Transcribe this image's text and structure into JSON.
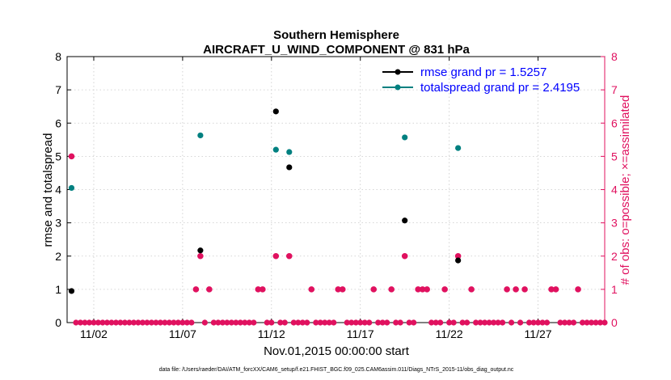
{
  "colors": {
    "rmse": "#000000",
    "spread": "#008080",
    "obs": "#e0115f",
    "legend_text": "#0000ff",
    "axis": "#000000"
  },
  "chart_data": {
    "type": "scatter",
    "title_line1": "Southern Hemisphere",
    "title_line2": "AIRCRAFT_U_WIND_COMPONENT @ 831 hPa",
    "xlabel": "Nov.01,2015 00:00:00 start",
    "ylabel_left": "rmse and totalspread",
    "ylabel_right": "# of obs: o=possible; ×=assimilated",
    "footnote": "data file: /Users/raeder/DAI/ATM_forcXX/CAM6_setup/f.e21.FHIST_BGC.f09_025.CAM6assim.011/Diags_NTrS_2015-11/obs_diag_output.nc",
    "xlim": [
      0.5,
      30.75
    ],
    "ylim_left": [
      0,
      8
    ],
    "ylim_right": [
      0,
      8
    ],
    "x_ticks": [
      {
        "x": 2,
        "label": "11/02"
      },
      {
        "x": 7,
        "label": "11/07"
      },
      {
        "x": 12,
        "label": "11/12"
      },
      {
        "x": 17,
        "label": "11/17"
      },
      {
        "x": 22,
        "label": "11/22"
      },
      {
        "x": 27,
        "label": "11/27"
      }
    ],
    "y_ticks_left": [
      "0",
      "1",
      "2",
      "3",
      "4",
      "5",
      "6",
      "7",
      "8"
    ],
    "y_ticks_right": [
      "0",
      "1",
      "2",
      "3",
      "4",
      "5",
      "6",
      "7",
      "8"
    ],
    "legend": [
      {
        "name": "rmse grand pr = 1.5257",
        "series": "rmse"
      },
      {
        "name": "totalspread grand pr = 2.4195",
        "series": "spread"
      }
    ],
    "series": [
      {
        "name": "rmse",
        "x": [
          0.75,
          8.0,
          12.25,
          13.0,
          19.5,
          22.5
        ],
        "y": [
          0.95,
          2.17,
          6.35,
          4.67,
          3.07,
          1.87
        ]
      },
      {
        "name": "totalspread",
        "x": [
          0.75,
          8.0,
          12.25,
          13.0,
          19.5,
          22.5
        ],
        "y": [
          4.05,
          5.63,
          5.2,
          5.13,
          5.57,
          5.25
        ]
      },
      {
        "name": "obs_possible",
        "x": [
          0.75,
          7.75,
          8.0,
          8.5,
          11.25,
          11.5,
          12.25,
          13.0,
          14.25,
          15.75,
          16.0,
          17.75,
          18.75,
          19.5,
          20.25,
          20.5,
          20.75,
          21.75,
          22.5,
          23.25,
          25.25,
          25.75,
          26.25,
          27.75,
          28.0,
          29.25
        ],
        "y": [
          5,
          1,
          2,
          1,
          1,
          1,
          2,
          2,
          1,
          1,
          1,
          1,
          1,
          2,
          1,
          1,
          1,
          1,
          2,
          1,
          1,
          1,
          1,
          1,
          1,
          1
        ]
      }
    ]
  }
}
